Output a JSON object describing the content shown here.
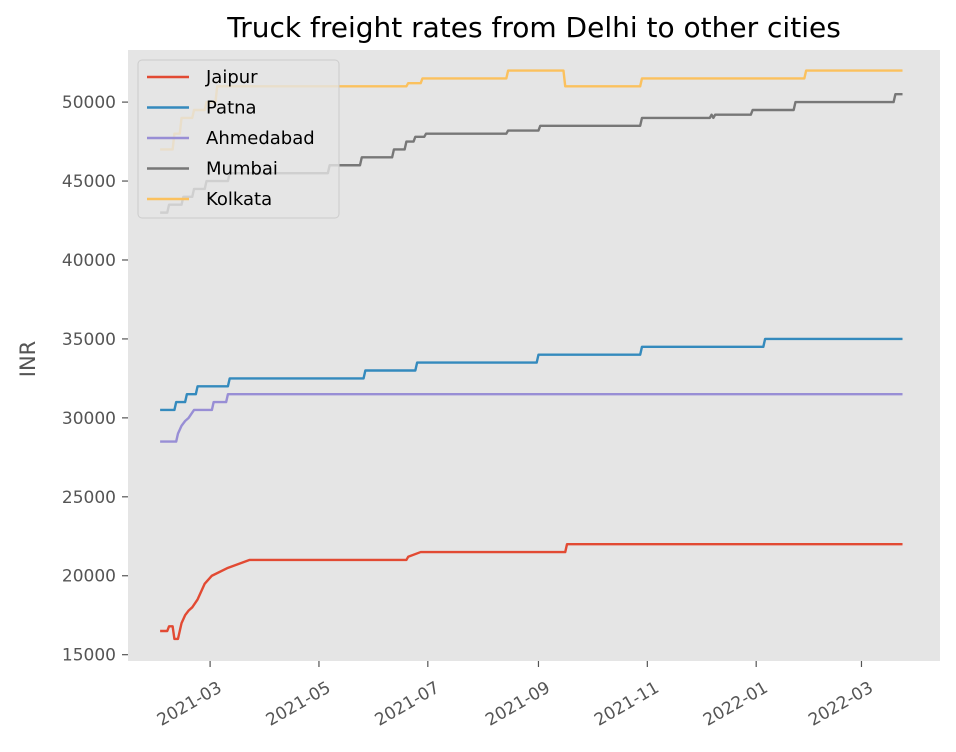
{
  "chart_data": {
    "type": "line",
    "title": "Truck freight rates from Delhi to other cities",
    "xlabel": "",
    "ylabel": "INR",
    "x_range": [
      "2021-01-14",
      "2022-04-14"
    ],
    "ylim": [
      14600,
      53300
    ],
    "x_ticks": [
      "2021-03",
      "2021-05",
      "2021-07",
      "2021-09",
      "2021-11",
      "2022-01",
      "2022-03"
    ],
    "y_ticks": [
      15000,
      20000,
      25000,
      30000,
      35000,
      40000,
      45000,
      50000
    ],
    "grid": false,
    "legend_position": "upper-left",
    "series": [
      {
        "name": "Jaipur",
        "color": "#E24A33",
        "points": [
          [
            "2021-02-01",
            16500
          ],
          [
            "2021-02-05",
            16500
          ],
          [
            "2021-02-06",
            16800
          ],
          [
            "2021-02-08",
            16800
          ],
          [
            "2021-02-09",
            16000
          ],
          [
            "2021-02-11",
            16000
          ],
          [
            "2021-02-12",
            16500
          ],
          [
            "2021-02-13",
            17000
          ],
          [
            "2021-02-15",
            17500
          ],
          [
            "2021-02-17",
            17800
          ],
          [
            "2021-02-19",
            18000
          ],
          [
            "2021-02-22",
            18500
          ],
          [
            "2021-02-26",
            19500
          ],
          [
            "2021-03-02",
            20000
          ],
          [
            "2021-03-11",
            20500
          ],
          [
            "2021-03-23",
            21000
          ],
          [
            "2021-06-19",
            21000
          ],
          [
            "2021-06-20",
            21200
          ],
          [
            "2021-06-27",
            21500
          ],
          [
            "2021-09-16",
            21500
          ],
          [
            "2021-09-17",
            22000
          ],
          [
            "2022-03-24",
            22000
          ]
        ]
      },
      {
        "name": "Patna",
        "color": "#348ABD",
        "points": [
          [
            "2021-02-01",
            30500
          ],
          [
            "2021-02-09",
            30500
          ],
          [
            "2021-02-10",
            31000
          ],
          [
            "2021-02-15",
            31000
          ],
          [
            "2021-02-16",
            31500
          ],
          [
            "2021-02-21",
            31500
          ],
          [
            "2021-02-22",
            32000
          ],
          [
            "2021-03-11",
            32000
          ],
          [
            "2021-03-12",
            32500
          ],
          [
            "2021-05-26",
            32500
          ],
          [
            "2021-05-27",
            33000
          ],
          [
            "2021-06-24",
            33000
          ],
          [
            "2021-06-25",
            33500
          ],
          [
            "2021-08-31",
            33500
          ],
          [
            "2021-09-01",
            34000
          ],
          [
            "2021-10-28",
            34000
          ],
          [
            "2021-10-29",
            34500
          ],
          [
            "2022-01-05",
            34500
          ],
          [
            "2022-01-06",
            35000
          ],
          [
            "2022-03-24",
            35000
          ]
        ]
      },
      {
        "name": "Ahmedabad",
        "color": "#988ED5",
        "points": [
          [
            "2021-02-01",
            28500
          ],
          [
            "2021-02-10",
            28500
          ],
          [
            "2021-02-11",
            29000
          ],
          [
            "2021-02-13",
            29500
          ],
          [
            "2021-02-15",
            29800
          ],
          [
            "2021-02-17",
            30000
          ],
          [
            "2021-02-20",
            30500
          ],
          [
            "2021-03-02",
            30500
          ],
          [
            "2021-03-03",
            31000
          ],
          [
            "2021-03-10",
            31000
          ],
          [
            "2021-03-11",
            31500
          ],
          [
            "2022-03-24",
            31500
          ]
        ]
      },
      {
        "name": "Mumbai",
        "color": "#777777",
        "points": [
          [
            "2021-02-01",
            43000
          ],
          [
            "2021-02-05",
            43000
          ],
          [
            "2021-02-06",
            43500
          ],
          [
            "2021-02-13",
            43500
          ],
          [
            "2021-02-14",
            44000
          ],
          [
            "2021-02-19",
            44000
          ],
          [
            "2021-02-20",
            44500
          ],
          [
            "2021-02-26",
            44500
          ],
          [
            "2021-02-27",
            45000
          ],
          [
            "2021-03-11",
            45000
          ],
          [
            "2021-03-12",
            45500
          ],
          [
            "2021-05-06",
            45500
          ],
          [
            "2021-05-07",
            46000
          ],
          [
            "2021-05-24",
            46000
          ],
          [
            "2021-05-25",
            46500
          ],
          [
            "2021-06-11",
            46500
          ],
          [
            "2021-06-12",
            47000
          ],
          [
            "2021-06-18",
            47000
          ],
          [
            "2021-06-19",
            47500
          ],
          [
            "2021-06-23",
            47500
          ],
          [
            "2021-06-24",
            47800
          ],
          [
            "2021-06-29",
            47800
          ],
          [
            "2021-06-30",
            48000
          ],
          [
            "2021-08-14",
            48000
          ],
          [
            "2021-08-15",
            48200
          ],
          [
            "2021-09-01",
            48200
          ],
          [
            "2021-09-02",
            48500
          ],
          [
            "2021-10-28",
            48500
          ],
          [
            "2021-10-29",
            49000
          ],
          [
            "2021-12-06",
            49000
          ],
          [
            "2021-12-07",
            49200
          ],
          [
            "2021-12-08",
            49000
          ],
          [
            "2021-12-09",
            49200
          ],
          [
            "2021-12-29",
            49200
          ],
          [
            "2021-12-30",
            49500
          ],
          [
            "2022-01-22",
            49500
          ],
          [
            "2022-01-23",
            50000
          ],
          [
            "2022-03-19",
            50000
          ],
          [
            "2022-03-20",
            50500
          ],
          [
            "2022-03-24",
            50500
          ]
        ]
      },
      {
        "name": "Kolkata",
        "color": "#FBC15E",
        "points": [
          [
            "2021-02-01",
            47000
          ],
          [
            "2021-02-08",
            47000
          ],
          [
            "2021-02-09",
            48000
          ],
          [
            "2021-02-12",
            48000
          ],
          [
            "2021-02-13",
            49000
          ],
          [
            "2021-02-19",
            49000
          ],
          [
            "2021-02-20",
            49500
          ],
          [
            "2021-02-26",
            49500
          ],
          [
            "2021-02-27",
            50000
          ],
          [
            "2021-03-04",
            50000
          ],
          [
            "2021-03-05",
            51000
          ],
          [
            "2021-06-19",
            51000
          ],
          [
            "2021-06-20",
            51200
          ],
          [
            "2021-06-27",
            51200
          ],
          [
            "2021-06-28",
            51500
          ],
          [
            "2021-08-14",
            51500
          ],
          [
            "2021-08-15",
            52000
          ],
          [
            "2021-09-15",
            52000
          ],
          [
            "2021-09-16",
            51000
          ],
          [
            "2021-10-28",
            51000
          ],
          [
            "2021-10-29",
            51500
          ],
          [
            "2022-01-28",
            51500
          ],
          [
            "2022-01-29",
            52000
          ],
          [
            "2022-03-24",
            52000
          ]
        ]
      }
    ]
  }
}
